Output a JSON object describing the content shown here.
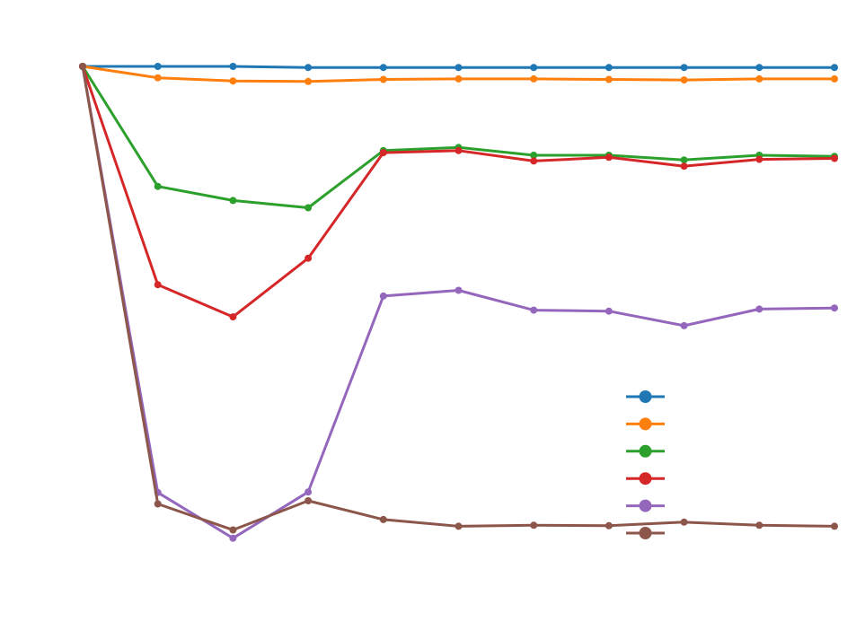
{
  "chart_data": {
    "type": "line",
    "title": "",
    "xlabel": "",
    "ylabel": "",
    "x": [
      0,
      1,
      2,
      3,
      4,
      5,
      6,
      7,
      8,
      9,
      10
    ],
    "xlim": [
      0,
      10
    ],
    "ylim": [
      0.0,
      1.0
    ],
    "grid": false,
    "legend": "lower-right",
    "series": [
      {
        "color": "#1f77b4",
        "values": [
          1.0,
          1.0,
          1.0,
          0.998,
          0.998,
          0.998,
          0.998,
          0.998,
          0.998,
          0.998,
          0.998
        ]
      },
      {
        "color": "#ff7f0e",
        "values": [
          1.0,
          0.978,
          0.972,
          0.971,
          0.975,
          0.976,
          0.976,
          0.975,
          0.974,
          0.976,
          0.976
        ]
      },
      {
        "color": "#2ca02c",
        "values": [
          1.0,
          0.769,
          0.742,
          0.728,
          0.838,
          0.844,
          0.829,
          0.829,
          0.82,
          0.829,
          0.827
        ]
      },
      {
        "color": "#d62728",
        "values": [
          1.0,
          0.58,
          0.518,
          0.631,
          0.834,
          0.838,
          0.818,
          0.825,
          0.808,
          0.821,
          0.823
        ]
      },
      {
        "color": "#9467bd",
        "values": [
          1.0,
          0.18,
          0.092,
          0.181,
          0.558,
          0.569,
          0.531,
          0.529,
          0.501,
          0.533,
          0.535
        ]
      },
      {
        "color": "#8c564b",
        "values": [
          1.0,
          0.158,
          0.108,
          0.164,
          0.128,
          0.115,
          0.117,
          0.116,
          0.123,
          0.117,
          0.115
        ]
      }
    ]
  }
}
